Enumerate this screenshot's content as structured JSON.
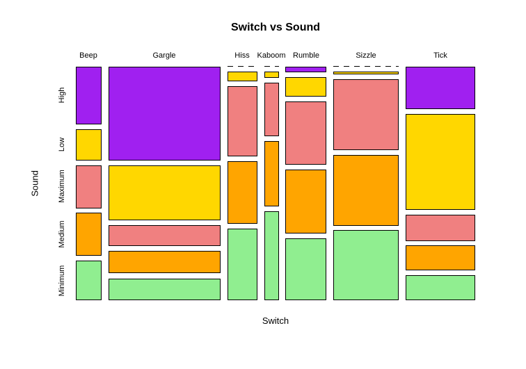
{
  "chart_data": {
    "type": "bar",
    "subtype": "mosaic",
    "title": "Switch vs Sound",
    "xlabel": "Switch",
    "ylabel": "Sound",
    "legend": "none",
    "axes_box": false,
    "background": "#ffffff",
    "cell_border_color": "#000000",
    "rows": [
      "High",
      "Low",
      "Maximum",
      "Medium",
      "Minimum"
    ],
    "row_colors": [
      "#A020F0",
      "#FFD700",
      "#F08080",
      "#FFA500",
      "#90EE90"
    ],
    "zero_cell_style": "dashed-line",
    "columns": [
      {
        "label": "Beep",
        "width_share": 0.0718,
        "cells": [
          0.2686,
          0.1456,
          0.2006,
          0.2006,
          0.1845
        ]
      },
      {
        "label": "Gargle",
        "width_share": 0.3126,
        "cells": [
          0.4375,
          0.2566,
          0.0987,
          0.1053,
          0.102
        ]
      },
      {
        "label": "Hiss",
        "width_share": 0.0835,
        "cells": [
          0.0,
          0.0462,
          0.3267,
          0.2937,
          0.3333
        ]
      },
      {
        "label": "Kaboom",
        "width_share": 0.0408,
        "cells": [
          0.0,
          0.0289,
          0.2508,
          0.3054,
          0.4148
        ]
      },
      {
        "label": "Rumble",
        "width_share": 0.1146,
        "cells": [
          0.026,
          0.0909,
          0.2955,
          0.2987,
          0.289
        ]
      },
      {
        "label": "Sizzle",
        "width_share": 0.1825,
        "cells": [
          0.0,
          0.0129,
          0.3301,
          0.3301,
          0.3269
        ]
      },
      {
        "label": "Tick",
        "width_share": 0.1942,
        "cells": [
          0.1968,
          0.4484,
          0.1226,
          0.1161,
          0.1161
        ]
      }
    ]
  }
}
